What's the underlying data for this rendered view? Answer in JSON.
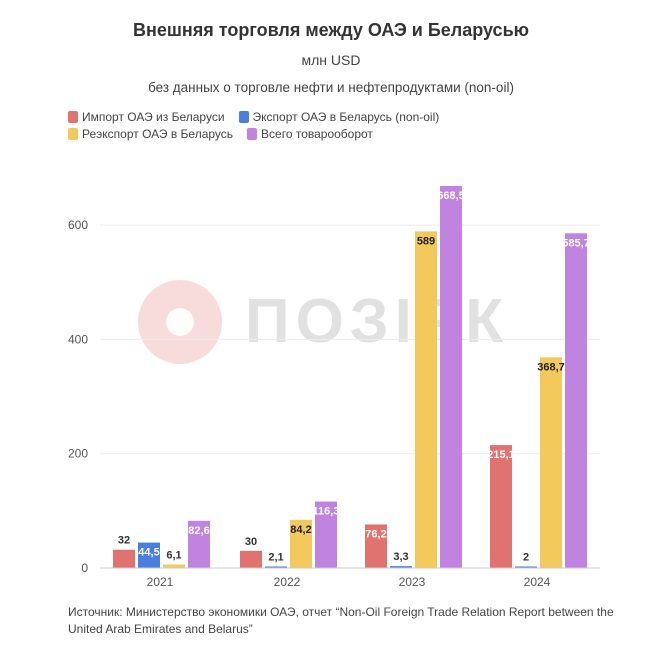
{
  "chart_data": {
    "type": "bar",
    "title": "Внешняя торговля между ОАЭ и Беларусью",
    "subtitle": "млн USD",
    "subtitle2": "без данных о торговле нефти и нефтепродуктами (non-oil)",
    "categories": [
      "2021",
      "2022",
      "2023",
      "2024"
    ],
    "ylim": [
      0,
      700
    ],
    "yticks": [
      0,
      200,
      400,
      600
    ],
    "series": [
      {
        "name": "Импорт ОАЭ из Беларуси",
        "color": "#e07270",
        "values": [
          32,
          30,
          76.2,
          215.1
        ],
        "labels": [
          "32",
          "30",
          "76,2",
          "215,1"
        ]
      },
      {
        "name": "Экспорт ОАЭ в Беларусь (non-oil)",
        "color": "#4a7fe0",
        "values": [
          44.5,
          2.1,
          3.3,
          2
        ],
        "labels": [
          "44,5",
          "2,1",
          "3,3",
          "2"
        ]
      },
      {
        "name": "Реэкспорт ОАЭ в Беларусь",
        "color": "#f3c95b",
        "values": [
          6.1,
          84.2,
          589,
          368.7
        ],
        "labels": [
          "6,1",
          "84,2",
          "589",
          "368,7"
        ]
      },
      {
        "name": "Всего товарооборот",
        "color": "#c083e0",
        "values": [
          82.6,
          116.3,
          668.5,
          585.7
        ],
        "labels": [
          "82,6",
          "116,3",
          "668,5",
          "585,7"
        ]
      }
    ],
    "legend": "top-left",
    "grid": true
  },
  "watermark": "ПОЗІРК",
  "source": "Источник: Министерство экономики ОАЭ, отчет “Non-Oil Foreign Trade Relation Report between the United Arab Emirates and Belarus”"
}
